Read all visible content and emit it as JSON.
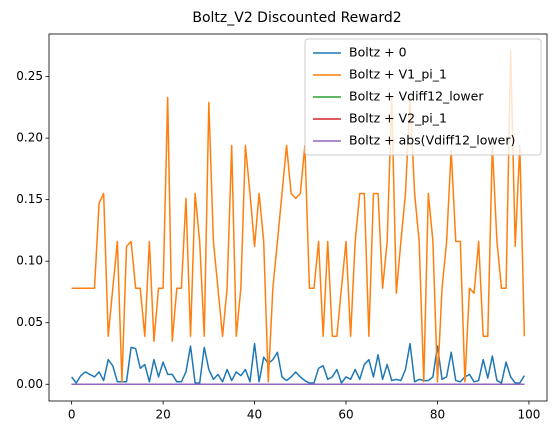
{
  "chart_data": {
    "type": "line",
    "title": "Boltz_V2 Discounted Reward2",
    "x": [
      0,
      1,
      2,
      3,
      4,
      5,
      6,
      7,
      8,
      9,
      10,
      11,
      12,
      13,
      14,
      15,
      16,
      17,
      18,
      19,
      20,
      21,
      22,
      23,
      24,
      25,
      26,
      27,
      28,
      29,
      30,
      31,
      32,
      33,
      34,
      35,
      36,
      37,
      38,
      39,
      40,
      41,
      42,
      43,
      44,
      45,
      46,
      47,
      48,
      49,
      50,
      51,
      52,
      53,
      54,
      55,
      56,
      57,
      58,
      59,
      60,
      61,
      62,
      63,
      64,
      65,
      66,
      67,
      68,
      69,
      70,
      71,
      72,
      73,
      74,
      75,
      76,
      77,
      78,
      79,
      80,
      81,
      82,
      83,
      84,
      85,
      86,
      87,
      88,
      89,
      90,
      91,
      92,
      93,
      94,
      95,
      96,
      97,
      98,
      99
    ],
    "series": [
      {
        "name": "Boltz + 0",
        "color": "#1f77b4",
        "values": [
          0.006,
          0.001,
          0.007,
          0.01,
          0.008,
          0.006,
          0.01,
          0.003,
          0.02,
          0.015,
          0.002,
          0.002,
          0.002,
          0.03,
          0.029,
          0.013,
          0.016,
          0.002,
          0.02,
          0.006,
          0.018,
          0.008,
          0.008,
          0.002,
          0.002,
          0.01,
          0.031,
          0.001,
          0.001,
          0.03,
          0.012,
          0.004,
          0.008,
          0.002,
          0.012,
          0.003,
          0.01,
          0.007,
          0.012,
          0.002,
          0.033,
          0.002,
          0.022,
          0.017,
          0.02,
          0.026,
          0.006,
          0.003,
          0.006,
          0.01,
          0.006,
          0.003,
          0.001,
          0.001,
          0.013,
          0.015,
          0.004,
          0.006,
          0.012,
          0.001,
          0.006,
          0.004,
          0.012,
          0.004,
          0.016,
          0.02,
          0.006,
          0.024,
          0.004,
          0.016,
          0.003,
          0.004,
          0.003,
          0.012,
          0.033,
          0.002,
          0.004,
          0.003,
          0.003,
          0.006,
          0.031,
          0.004,
          0.006,
          0.026,
          0.003,
          0.002,
          0.006,
          0.008,
          0.002,
          0.003,
          0.02,
          0.005,
          0.023,
          0.003,
          0.001,
          0.018,
          0.006,
          0.001,
          0.001,
          0.007
        ]
      },
      {
        "name": "Boltz + V1_pi_1",
        "color": "#ff7f0e",
        "values": [
          0.078,
          0.078,
          0.078,
          0.078,
          0.078,
          0.078,
          0.147,
          0.155,
          0.039,
          0.078,
          0.116,
          0.002,
          0.112,
          0.116,
          0.078,
          0.078,
          0.039,
          0.116,
          0.035,
          0.078,
          0.078,
          0.233,
          0.035,
          0.078,
          0.078,
          0.151,
          0.039,
          0.155,
          0.116,
          0.039,
          0.229,
          0.116,
          0.078,
          0.039,
          0.078,
          0.194,
          0.039,
          0.078,
          0.194,
          0.155,
          0.112,
          0.155,
          0.116,
          0.002,
          0.078,
          0.116,
          0.155,
          0.194,
          0.155,
          0.151,
          0.155,
          0.194,
          0.078,
          0.078,
          0.116,
          0.039,
          0.116,
          0.039,
          0.039,
          0.078,
          0.116,
          0.039,
          0.116,
          0.155,
          0.155,
          0.039,
          0.155,
          0.155,
          0.078,
          0.116,
          0.233,
          0.074,
          0.116,
          0.155,
          0.233,
          0.155,
          0.116,
          0.002,
          0.155,
          0.116,
          0.002,
          0.078,
          0.116,
          0.19,
          0.116,
          0.116,
          0.002,
          0.078,
          0.074,
          0.116,
          0.039,
          0.039,
          0.194,
          0.116,
          0.078,
          0.078,
          0.271,
          0.112,
          0.194,
          0.039
        ]
      },
      {
        "name": "Boltz + Vdiff12_lower",
        "color": "#2ca02c",
        "values": [
          0,
          0,
          0,
          0,
          0,
          0,
          0,
          0,
          0,
          0,
          0,
          0,
          0,
          0,
          0,
          0,
          0,
          0,
          0,
          0,
          0,
          0,
          0,
          0,
          0,
          0,
          0,
          0,
          0,
          0,
          0,
          0,
          0,
          0,
          0,
          0,
          0,
          0,
          0,
          0,
          0,
          0,
          0,
          0,
          0,
          0,
          0,
          0,
          0,
          0,
          0,
          0,
          0,
          0,
          0,
          0,
          0,
          0,
          0,
          0,
          0,
          0,
          0,
          0,
          0,
          0,
          0,
          0,
          0,
          0,
          0,
          0,
          0,
          0,
          0,
          0,
          0,
          0,
          0,
          0,
          0,
          0,
          0,
          0,
          0,
          0,
          0,
          0,
          0,
          0,
          0,
          0,
          0,
          0,
          0,
          0,
          0,
          0,
          0,
          0
        ]
      },
      {
        "name": "Boltz + V2_pi_1",
        "color": "#d62728",
        "values": [
          0,
          0,
          0,
          0,
          0,
          0,
          0,
          0,
          0,
          0,
          0,
          0,
          0,
          0,
          0,
          0,
          0,
          0,
          0,
          0,
          0,
          0,
          0,
          0,
          0,
          0,
          0,
          0,
          0,
          0,
          0,
          0,
          0,
          0,
          0,
          0,
          0,
          0,
          0,
          0,
          0,
          0,
          0,
          0,
          0,
          0,
          0,
          0,
          0,
          0,
          0,
          0,
          0,
          0,
          0,
          0,
          0,
          0,
          0,
          0,
          0,
          0,
          0,
          0,
          0,
          0,
          0,
          0,
          0,
          0,
          0,
          0,
          0,
          0,
          0,
          0,
          0,
          0,
          0,
          0,
          0,
          0,
          0,
          0,
          0,
          0,
          0,
          0,
          0,
          0,
          0,
          0,
          0,
          0,
          0,
          0,
          0,
          0,
          0,
          0
        ]
      },
      {
        "name": "Boltz + abs(Vdiff12_lower)",
        "color": "#9467bd",
        "values": [
          0,
          0,
          0,
          0,
          0,
          0,
          0,
          0,
          0,
          0,
          0,
          0,
          0,
          0,
          0,
          0,
          0,
          0,
          0,
          0,
          0,
          0,
          0,
          0,
          0,
          0,
          0,
          0,
          0,
          0,
          0,
          0,
          0,
          0,
          0,
          0,
          0,
          0,
          0,
          0,
          0,
          0,
          0,
          0,
          0,
          0,
          0,
          0,
          0,
          0,
          0,
          0,
          0,
          0,
          0,
          0,
          0,
          0,
          0,
          0,
          0,
          0,
          0,
          0,
          0,
          0,
          0,
          0,
          0,
          0,
          0,
          0,
          0,
          0,
          0,
          0,
          0,
          0,
          0,
          0,
          0,
          0,
          0,
          0,
          0,
          0,
          0,
          0,
          0,
          0,
          0,
          0,
          0,
          0,
          0,
          0,
          0,
          0,
          0,
          0
        ]
      }
    ],
    "xlim": [
      -4.95,
      103.95
    ],
    "xticks": [
      0,
      20,
      40,
      60,
      80,
      100
    ],
    "ylim": [
      -0.0136,
      0.2846
    ],
    "yticks": [
      {
        "value": 0,
        "label": "0.00"
      },
      {
        "value": 0.05,
        "label": "0.05"
      },
      {
        "value": 0.1,
        "label": "0.10"
      },
      {
        "value": 0.15,
        "label": "0.15"
      },
      {
        "value": 0.2,
        "label": "0.20"
      },
      {
        "value": 0.25,
        "label": "0.25"
      }
    ],
    "legend": "upper right",
    "grid": false
  }
}
